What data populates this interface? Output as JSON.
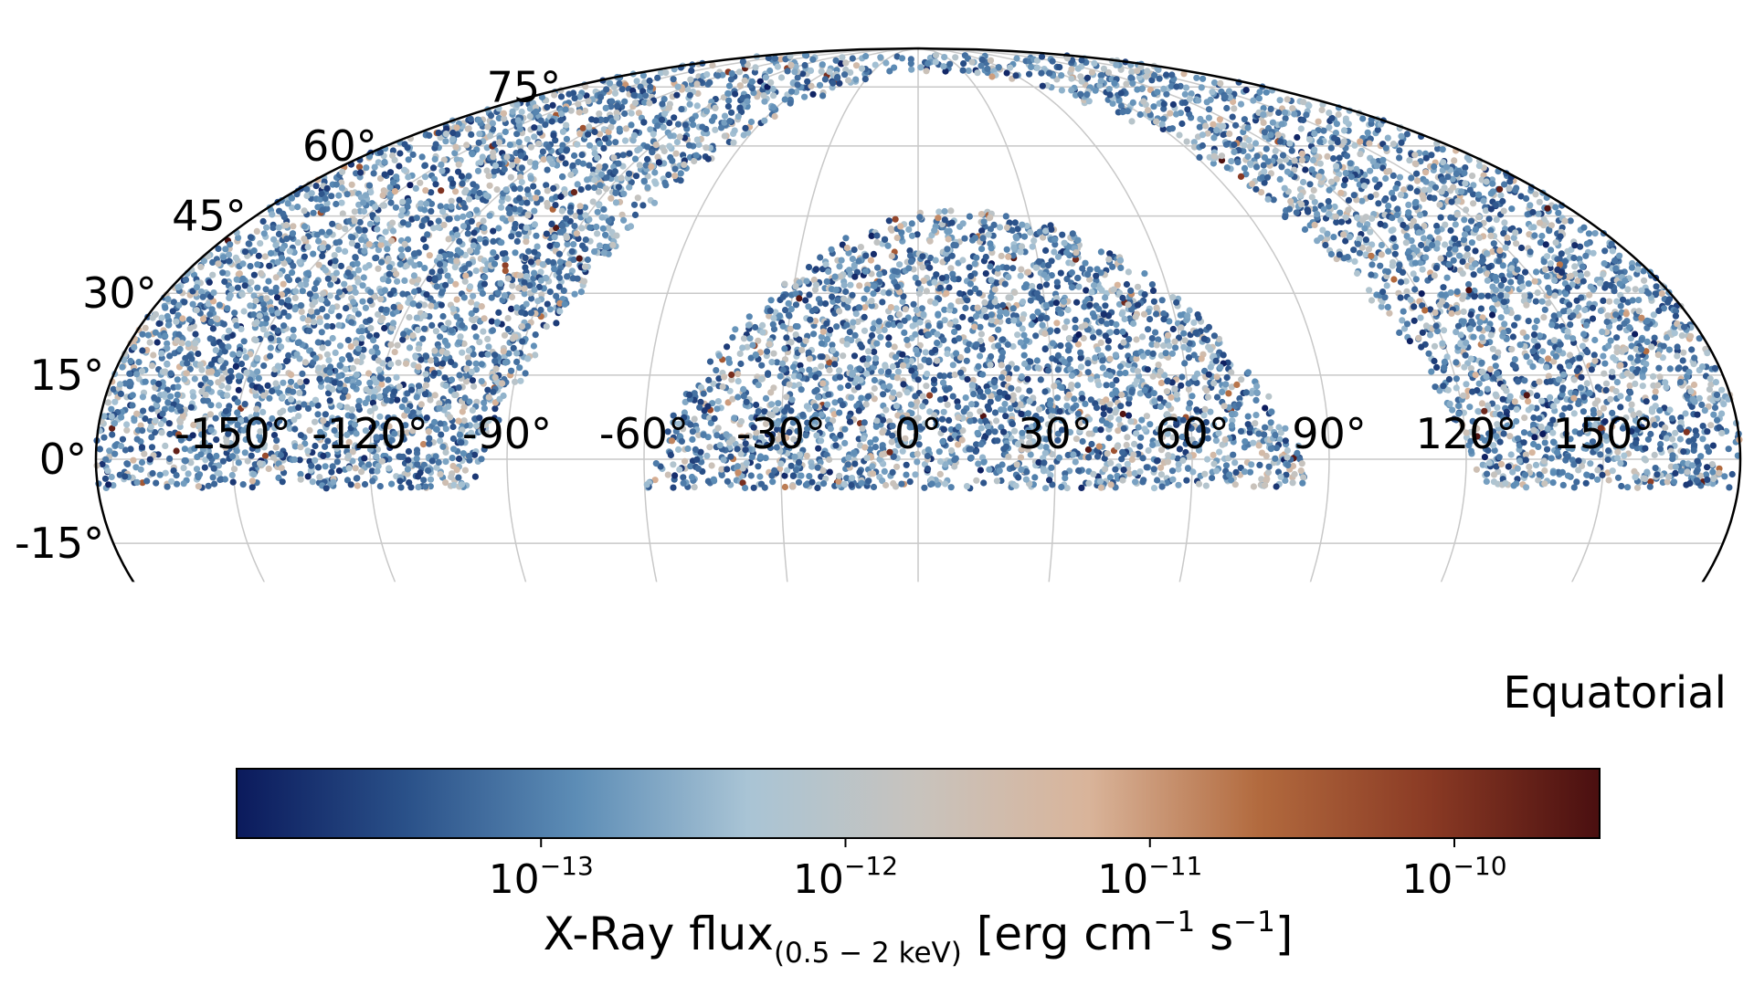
{
  "chart_data": {
    "type": "scatter",
    "projection": "mollweide",
    "frame": "Equatorial",
    "grid": true,
    "xticks": [
      -150,
      -120,
      -90,
      -60,
      -30,
      0,
      30,
      60,
      90,
      120,
      150
    ],
    "yticks": [
      -15,
      0,
      15,
      30,
      45,
      60,
      75
    ],
    "xtick_labels": [
      "-150°",
      "-120°",
      "-90°",
      "-60°",
      "-30°",
      "0°",
      "30°",
      "60°",
      "90°",
      "120°",
      "150°"
    ],
    "ytick_labels": [
      "-15°",
      "0°",
      "15°",
      "30°",
      "45°",
      "60°",
      "75°"
    ],
    "ylim_visible": [
      -22,
      90
    ],
    "colorbar": {
      "label": "X-Ray flux",
      "label_subscript": "(0.5 − 2 keV)",
      "label_units_a": " [erg cm",
      "label_units_exp1": "−1",
      "label_units_b": " s",
      "label_units_exp2": "−1",
      "label_units_c": "]",
      "scale": "log",
      "range": [
        1e-14,
        3e-10
      ],
      "ticks": [
        {
          "base": "10",
          "exp": "−13",
          "value": 1e-13
        },
        {
          "base": "10",
          "exp": "−12",
          "value": 1e-12
        },
        {
          "base": "10",
          "exp": "−11",
          "value": 1e-11
        },
        {
          "base": "10",
          "exp": "−10",
          "value": 1e-10
        }
      ],
      "colormap": [
        "#0b1a5c",
        "#2a5189",
        "#5d8db6",
        "#a9c4d5",
        "#c8c3bd",
        "#d9b49a",
        "#b26a3e",
        "#8a3a24",
        "#4a0f10"
      ]
    },
    "point_density": "sources cover northern sky; galactic-plane band empty",
    "typical_log_flux_range": [
      -13.4,
      -11.5
    ]
  }
}
